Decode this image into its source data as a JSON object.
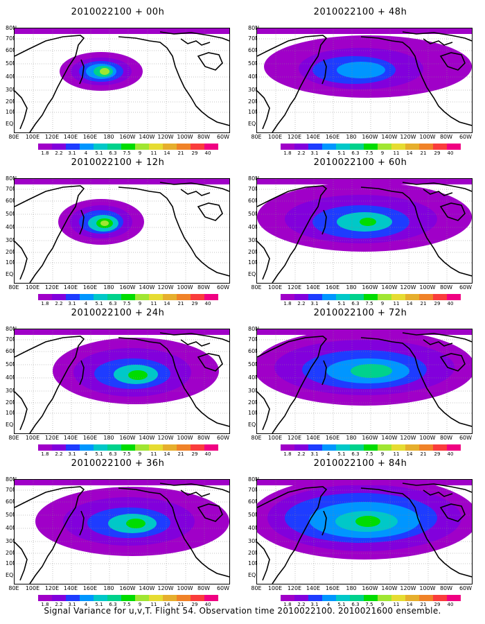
{
  "panels": [
    {
      "title": "2010022100 + 00h"
    },
    {
      "title": "2010022100 + 48h"
    },
    {
      "title": "2010022100 + 12h"
    },
    {
      "title": "2010022100 + 60h"
    },
    {
      "title": "2010022100 + 24h"
    },
    {
      "title": "2010022100 + 72h"
    },
    {
      "title": "2010022100 + 36h"
    },
    {
      "title": "2010022100 + 84h"
    }
  ],
  "lat_labels": [
    "80N",
    "70N",
    "60N",
    "50N",
    "40N",
    "30N",
    "20N",
    "10N",
    "EQ"
  ],
  "lon_labels": [
    "80E",
    "100E",
    "120E",
    "140E",
    "160E",
    "180",
    "160W",
    "140W",
    "120W",
    "100W",
    "80W",
    "60W"
  ],
  "colorbar": {
    "labels": [
      "1.8",
      "2.2",
      "3.1",
      "4",
      "5.1",
      "6.3",
      "7.5",
      "9",
      "11",
      "14",
      "21",
      "29",
      "40"
    ],
    "colors": [
      "#a000c8",
      "#8200dc",
      "#1e3cff",
      "#0096ff",
      "#00c8c8",
      "#00d28c",
      "#00dc00",
      "#a0e632",
      "#e6dc32",
      "#e6af2d",
      "#f08228",
      "#fa3c3c",
      "#f00082"
    ]
  },
  "caption": "Signal Variance for u,v,T. Flight 54. Observation time 2010022100. 2010021600 ensemble."
}
